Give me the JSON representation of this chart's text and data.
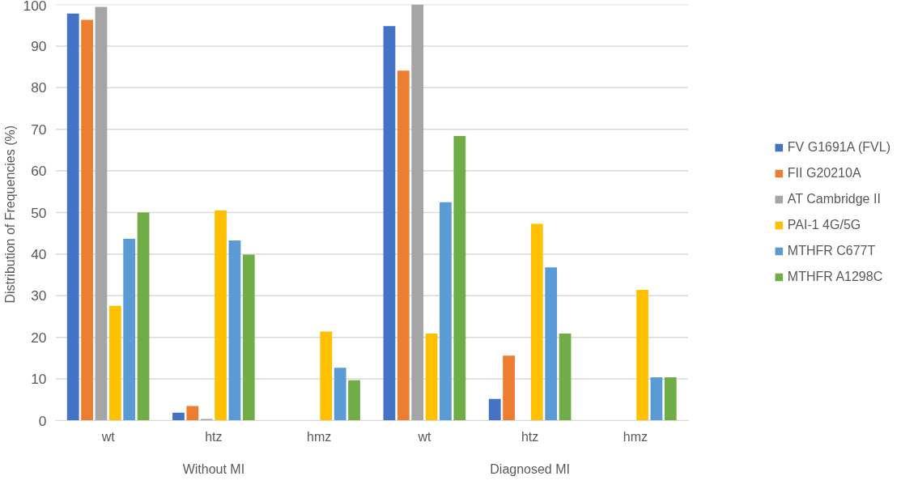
{
  "chart_data": {
    "type": "bar",
    "ylabel": "Distribution of Frequencies  (%)",
    "categories": [
      "wt",
      "htz",
      "hmz",
      "wt",
      "htz",
      "hmz"
    ],
    "annotations": [
      "Without MI",
      "Diagnosed MI"
    ],
    "series": [
      {
        "name": "FV G1691A (FVL)",
        "color": "#4472c4",
        "values": [
          97.8,
          1.9,
          0,
          94.8,
          5.2,
          0
        ]
      },
      {
        "name": "FII G20210A",
        "color": "#ed7d31",
        "values": [
          96.3,
          3.5,
          0,
          84.1,
          15.6,
          0
        ]
      },
      {
        "name": "AT Cambridge II",
        "color": "#a5a5a5",
        "values": [
          99.4,
          0.4,
          0,
          100,
          0,
          0
        ]
      },
      {
        "name": "PAI-1 4G/5G",
        "color": "#ffc000",
        "values": [
          27.6,
          50.5,
          21.4,
          20.9,
          47.3,
          31.4
        ]
      },
      {
        "name": "MTHFR C677T",
        "color": "#5b9bd5",
        "values": [
          43.7,
          43.3,
          12.7,
          52.5,
          36.8,
          10.4
        ]
      },
      {
        "name": "MTHFR A1298C",
        "color": "#70ad47",
        "values": [
          50.0,
          39.9,
          9.7,
          68.4,
          20.9,
          10.4
        ]
      }
    ],
    "ylim": [
      0,
      100
    ],
    "yticks": [
      0,
      10,
      20,
      30,
      40,
      50,
      60,
      70,
      80,
      90,
      100
    ],
    "grid": "y",
    "legend": "right"
  }
}
